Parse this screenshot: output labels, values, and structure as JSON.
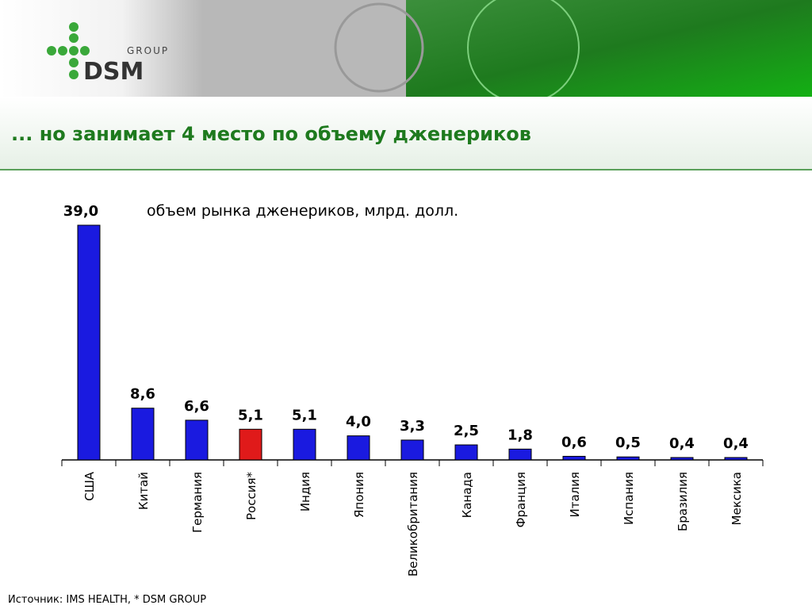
{
  "logo": {
    "group": "GROUP",
    "name": "DSM"
  },
  "chart_data": {
    "type": "bar",
    "title": "... но занимает 4 место по объему дженериков",
    "subtitle": "объем рынка дженериков, млрд. долл.",
    "categories": [
      "США",
      "Китай",
      "Германия",
      "Россия*",
      "Индия",
      "Япония",
      "Великобритания",
      "Канада",
      "Франция",
      "Италия",
      "Испания",
      "Бразилия",
      "Мексика"
    ],
    "values": [
      39.0,
      8.6,
      6.6,
      5.1,
      5.1,
      4.0,
      3.3,
      2.5,
      1.8,
      0.6,
      0.5,
      0.4,
      0.4
    ],
    "value_labels": [
      "39,0",
      "8,6",
      "6,6",
      "5,1",
      "5,1",
      "4,0",
      "3,3",
      "2,5",
      "1,8",
      "0,6",
      "0,5",
      "0,4",
      "0,4"
    ],
    "colors": [
      "#1a1ae0",
      "#1a1ae0",
      "#1a1ae0",
      "#e01a1a",
      "#1a1ae0",
      "#1a1ae0",
      "#1a1ae0",
      "#1a1ae0",
      "#1a1ae0",
      "#1a1ae0",
      "#1a1ae0",
      "#1a1ae0",
      "#1a1ae0"
    ]
  },
  "source": "Источник: IMS HEALTH, * DSM GROUP"
}
